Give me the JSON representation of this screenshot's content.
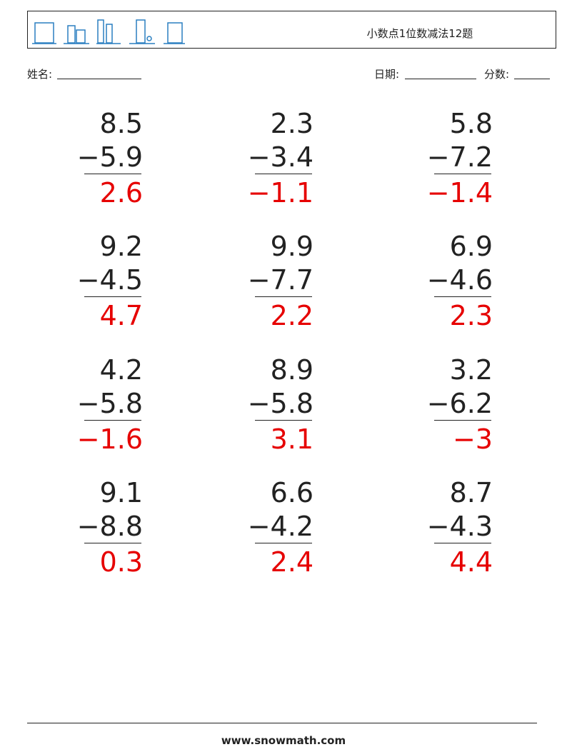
{
  "header": {
    "title": "小数点1位数减法12题"
  },
  "fields": {
    "name": "姓名:",
    "date": "日期:",
    "score": "分数:"
  },
  "problems": [
    {
      "top": "8.5",
      "bottom": "−5.9",
      "answer": "2.6"
    },
    {
      "top": "2.3",
      "bottom": "−3.4",
      "answer": "−1.1"
    },
    {
      "top": "5.8",
      "bottom": "−7.2",
      "answer": "−1.4"
    },
    {
      "top": "9.2",
      "bottom": "−4.5",
      "answer": "4.7"
    },
    {
      "top": "9.9",
      "bottom": "−7.7",
      "answer": "2.2"
    },
    {
      "top": "6.9",
      "bottom": "−4.6",
      "answer": "2.3"
    },
    {
      "top": "4.2",
      "bottom": "−5.8",
      "answer": "−1.6"
    },
    {
      "top": "8.9",
      "bottom": "−5.8",
      "answer": "3.1"
    },
    {
      "top": "3.2",
      "bottom": "−6.2",
      "answer": "−3"
    },
    {
      "top": "9.1",
      "bottom": "−8.8",
      "answer": "0.3"
    },
    {
      "top": "6.6",
      "bottom": "−4.2",
      "answer": "2.4"
    },
    {
      "top": "8.7",
      "bottom": "−4.3",
      "answer": "4.4"
    }
  ],
  "footer": {
    "url": "www.snowmath.com"
  }
}
